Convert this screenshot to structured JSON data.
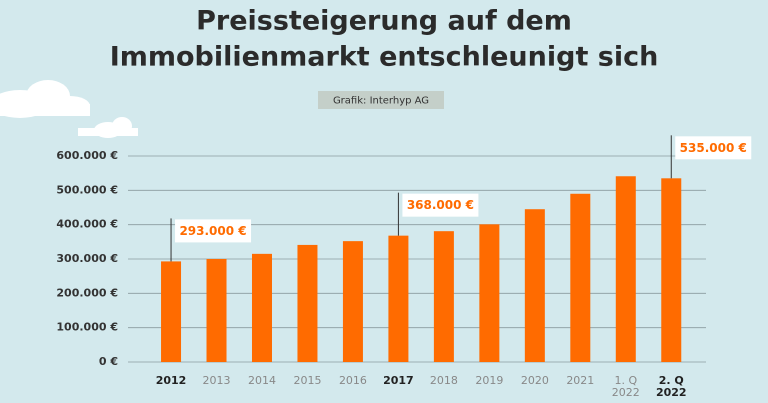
{
  "chart_data": {
    "type": "bar",
    "title": [
      "Preissteigerung auf dem",
      "Immobilienmarkt entschleunigt sich"
    ],
    "subtitle": "Grafik: Interhyp AG",
    "categories": [
      "2012",
      "2013",
      "2014",
      "2015",
      "2016",
      "2017",
      "2018",
      "2019",
      "2020",
      "2021",
      "1. Q 2022",
      "2. Q 2022"
    ],
    "values": [
      293000,
      300000,
      315000,
      341000,
      352000,
      368000,
      381000,
      401000,
      445000,
      490000,
      541000,
      535000
    ],
    "value_labels": [
      "293.000 €",
      null,
      null,
      null,
      null,
      "368.000 €",
      null,
      null,
      null,
      null,
      null,
      "535.000 €"
    ],
    "color": "#ff6b00",
    "ylim": [
      0,
      600000
    ],
    "yticks": [
      {
        "value": 0,
        "label": "0 €"
      },
      {
        "value": 100000,
        "label": "100.000 €"
      },
      {
        "value": 200000,
        "label": "200.000 €"
      },
      {
        "value": 300000,
        "label": "300.000 €"
      },
      {
        "value": 400000,
        "label": "400.000 €"
      },
      {
        "value": 500000,
        "label": "500.000 €"
      },
      {
        "value": 600000,
        "label": "600.000 €"
      }
    ],
    "grid": true
  }
}
